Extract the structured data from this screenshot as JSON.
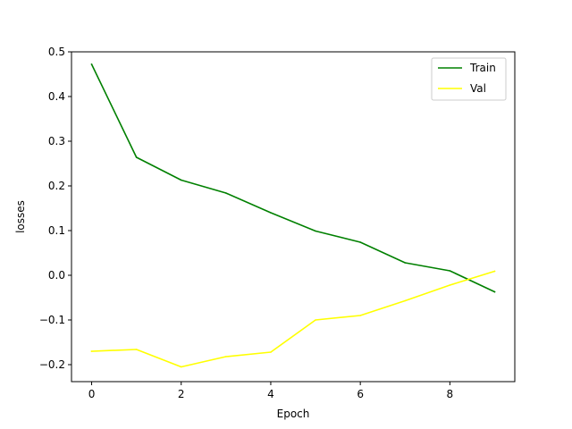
{
  "chart_data": {
    "type": "line",
    "xlabel": "Epoch",
    "ylabel": "losses",
    "xlim": [
      -0.45,
      9.45
    ],
    "ylim": [
      -0.238,
      0.5
    ],
    "xticks": [
      0,
      2,
      4,
      6,
      8
    ],
    "yticks": [
      -0.2,
      -0.1,
      0.0,
      0.1,
      0.2,
      0.3,
      0.4,
      0.5
    ],
    "x": [
      0,
      1,
      2,
      3,
      4,
      5,
      6,
      7,
      8,
      9
    ],
    "series": [
      {
        "name": "Train",
        "color": "#008000",
        "values": [
          0.472,
          0.264,
          0.213,
          0.184,
          0.14,
          0.099,
          0.074,
          0.028,
          0.01,
          -0.037
        ]
      },
      {
        "name": "Val",
        "color": "#ffff00",
        "values": [
          -0.17,
          -0.166,
          -0.205,
          -0.182,
          -0.172,
          -0.1,
          -0.09,
          -0.057,
          -0.022,
          0.009
        ]
      }
    ],
    "legend": {
      "position": "top-right"
    },
    "grid": false
  }
}
